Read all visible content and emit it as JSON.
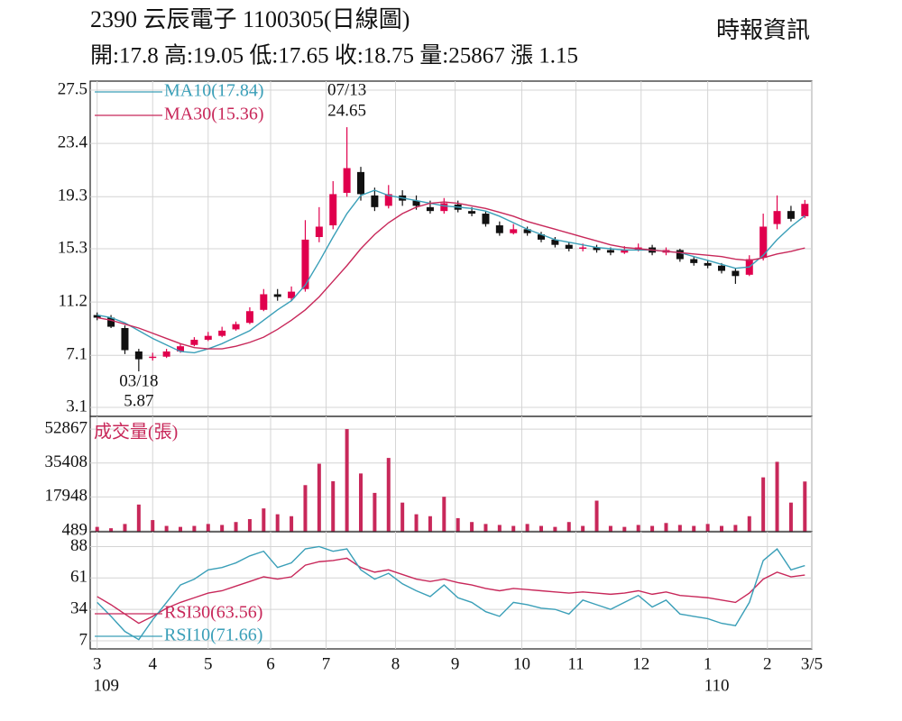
{
  "header": {
    "title": "2390  云辰電子 1100305(日線圖)",
    "source": "時報資訊",
    "summary": "開:17.8 高:19.05 低:17.65 收:18.75 量:25867 漲 1.15"
  },
  "chart_data": [
    {
      "type": "candlestick",
      "up_color": "#e0004d",
      "down_color": "#111111",
      "grid": true,
      "ylim": [
        3.1,
        27.5
      ],
      "yticks": [
        3.1,
        7.1,
        11.2,
        15.3,
        19.3,
        23.4,
        27.5
      ],
      "open": [
        10.2,
        10.0,
        9.2,
        7.4,
        6.9,
        7.0,
        7.4,
        7.9,
        8.3,
        8.6,
        9.1,
        9.6,
        10.6,
        11.8,
        11.5,
        12.2,
        16.2,
        17.1,
        19.6,
        21.2,
        19.4,
        18.6,
        19.4,
        19.0,
        18.5,
        18.2,
        18.7,
        18.2,
        18.0,
        17.1,
        16.5,
        16.8,
        16.4,
        16.0,
        15.6,
        15.3,
        15.4,
        15.2,
        15.0,
        15.2,
        15.4,
        15.0,
        15.2,
        14.5,
        14.2,
        14.0,
        13.6,
        13.3,
        14.6,
        17.2,
        18.2,
        17.8
      ],
      "high": [
        10.4,
        10.2,
        9.4,
        7.6,
        7.3,
        7.6,
        8.0,
        8.5,
        8.9,
        9.3,
        9.7,
        10.8,
        12.2,
        12.2,
        12.4,
        17.5,
        18.5,
        20.5,
        24.65,
        21.6,
        20.0,
        20.2,
        19.8,
        19.4,
        19.0,
        19.2,
        19.0,
        18.5,
        18.2,
        17.4,
        17.2,
        17.0,
        16.6,
        16.2,
        15.8,
        15.7,
        15.6,
        15.4,
        15.5,
        15.7,
        15.6,
        15.4,
        15.3,
        14.7,
        14.4,
        14.2,
        13.8,
        14.8,
        18.0,
        19.4,
        18.6,
        19.05
      ],
      "low": [
        9.8,
        9.2,
        7.2,
        5.87,
        6.7,
        6.9,
        7.3,
        7.8,
        8.2,
        8.5,
        9.0,
        9.5,
        10.5,
        11.3,
        11.3,
        12.0,
        15.8,
        16.8,
        19.3,
        19.0,
        18.2,
        18.4,
        18.6,
        18.3,
        18.0,
        18.0,
        18.1,
        17.8,
        17.0,
        16.3,
        16.4,
        16.3,
        15.8,
        15.4,
        15.1,
        15.1,
        15.0,
        14.8,
        14.9,
        15.1,
        14.8,
        14.8,
        14.3,
        14.0,
        13.8,
        13.4,
        12.6,
        13.2,
        14.4,
        16.8,
        17.4,
        17.65
      ],
      "close": [
        10.0,
        9.3,
        7.5,
        6.8,
        7.0,
        7.4,
        7.8,
        8.3,
        8.6,
        9.0,
        9.5,
        10.5,
        11.8,
        11.6,
        12.0,
        16.0,
        17.0,
        19.5,
        21.5,
        19.5,
        18.5,
        19.5,
        19.0,
        18.6,
        18.2,
        18.8,
        18.3,
        18.0,
        17.2,
        16.5,
        16.8,
        16.5,
        16.0,
        15.6,
        15.3,
        15.4,
        15.2,
        15.0,
        15.2,
        15.4,
        15.0,
        15.2,
        14.5,
        14.2,
        14.0,
        13.6,
        13.2,
        14.5,
        17.0,
        18.2,
        17.6,
        18.75
      ],
      "series": [
        {
          "name": "MA10(17.84)",
          "color": "#3a9fb8",
          "values": [
            10.2,
            10.0,
            9.6,
            9.0,
            8.4,
            7.9,
            7.4,
            7.3,
            7.6,
            8.0,
            8.5,
            9.0,
            9.8,
            10.6,
            11.3,
            12.5,
            14.3,
            16.2,
            18.0,
            19.4,
            19.8,
            19.4,
            19.2,
            19.0,
            18.8,
            18.6,
            18.5,
            18.4,
            18.2,
            17.8,
            17.3,
            16.8,
            16.4,
            16.0,
            15.8,
            15.6,
            15.4,
            15.3,
            15.2,
            15.2,
            15.2,
            15.1,
            15.0,
            14.7,
            14.4,
            14.1,
            13.8,
            13.9,
            14.8,
            16.0,
            17.0,
            17.84
          ]
        },
        {
          "name": "MA30(15.36)",
          "color": "#c8285a",
          "values": [
            10.0,
            9.8,
            9.5,
            9.2,
            8.8,
            8.4,
            8.0,
            7.7,
            7.6,
            7.6,
            7.8,
            8.1,
            8.5,
            9.1,
            9.8,
            10.6,
            11.6,
            12.8,
            14.0,
            15.3,
            16.4,
            17.3,
            18.0,
            18.5,
            18.8,
            18.9,
            18.8,
            18.6,
            18.4,
            18.1,
            17.8,
            17.4,
            17.1,
            16.8,
            16.5,
            16.2,
            15.9,
            15.6,
            15.4,
            15.3,
            15.2,
            15.1,
            15.0,
            14.9,
            14.8,
            14.7,
            14.5,
            14.4,
            14.6,
            14.9,
            15.1,
            15.36
          ]
        }
      ],
      "annotations": [
        {
          "date": "07/13",
          "value": 24.65,
          "position": "above"
        },
        {
          "date": "03/18",
          "value": 5.87,
          "position": "below"
        }
      ]
    },
    {
      "type": "bar",
      "grid": true,
      "ylim": [
        0,
        58000
      ],
      "yticks": [
        489,
        17948,
        35408,
        52867
      ],
      "series": [
        {
          "name": "成交量(張)",
          "color": "#c8285a",
          "values": [
            2500,
            1800,
            4000,
            14000,
            6000,
            3000,
            2500,
            3000,
            4000,
            3500,
            5000,
            6500,
            12000,
            9000,
            8000,
            24000,
            35000,
            26000,
            52867,
            30000,
            20000,
            38000,
            15000,
            9000,
            8000,
            18000,
            7000,
            5000,
            4000,
            3500,
            3000,
            4000,
            3000,
            2500,
            5000,
            3000,
            16000,
            3000,
            2500,
            3500,
            3000,
            4500,
            3500,
            3000,
            4000,
            3000,
            3500,
            8000,
            28000,
            36000,
            15000,
            25867
          ]
        }
      ]
    },
    {
      "type": "line",
      "grid": true,
      "ylim": [
        0,
        100
      ],
      "yticks": [
        7,
        34,
        61,
        88
      ],
      "series": [
        {
          "name": "RSI30(63.56)",
          "color": "#c8285a",
          "values": [
            45,
            38,
            30,
            22,
            28,
            35,
            40,
            44,
            48,
            50,
            54,
            58,
            62,
            60,
            62,
            72,
            75,
            76,
            78,
            70,
            66,
            68,
            64,
            60,
            58,
            60,
            57,
            55,
            52,
            50,
            52,
            51,
            50,
            49,
            48,
            49,
            48,
            47,
            48,
            50,
            47,
            49,
            46,
            45,
            44,
            42,
            40,
            48,
            60,
            66,
            62,
            63.56
          ]
        },
        {
          "name": "RSI10(71.66)",
          "color": "#3a9fb8",
          "values": [
            40,
            28,
            15,
            8,
            25,
            40,
            55,
            60,
            68,
            70,
            74,
            80,
            84,
            70,
            74,
            86,
            88,
            84,
            86,
            68,
            60,
            65,
            56,
            50,
            45,
            55,
            44,
            40,
            32,
            28,
            40,
            38,
            35,
            34,
            30,
            42,
            38,
            34,
            40,
            46,
            36,
            42,
            30,
            28,
            26,
            22,
            20,
            40,
            76,
            86,
            68,
            71.66
          ]
        }
      ],
      "xticks": [
        {
          "value": 0,
          "label": "3"
        },
        {
          "value": 4,
          "label": "4"
        },
        {
          "value": 8,
          "label": "5"
        },
        {
          "value": 12.5,
          "label": "6"
        },
        {
          "value": 16.5,
          "label": "7"
        },
        {
          "value": 21.5,
          "label": "8"
        },
        {
          "value": 25.8,
          "label": "9"
        },
        {
          "value": 30.6,
          "label": "10"
        },
        {
          "value": 34.5,
          "label": "11"
        },
        {
          "value": 39.2,
          "label": "12"
        },
        {
          "value": 44,
          "label": "1"
        },
        {
          "value": 48.3,
          "label": "2"
        },
        {
          "value": 51.5,
          "label": "3/5"
        }
      ],
      "year_labels": [
        {
          "value": 0,
          "label": "109"
        },
        {
          "value": 44,
          "label": "110"
        }
      ]
    }
  ]
}
